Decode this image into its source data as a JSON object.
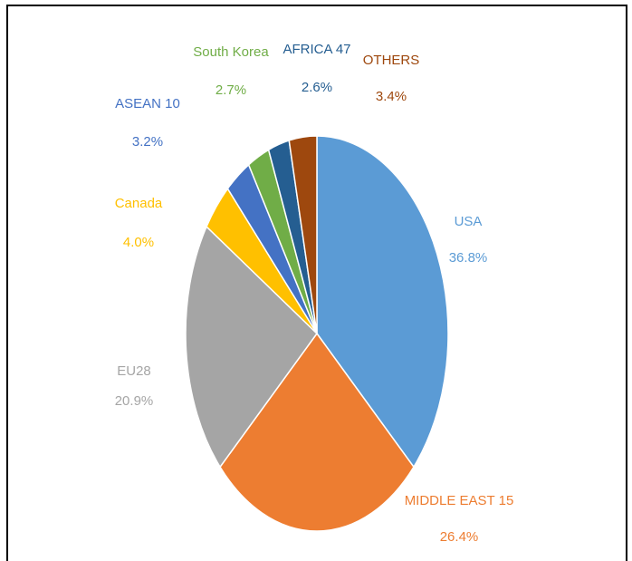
{
  "chart_data": {
    "type": "pie",
    "categories": [
      "USA",
      "MIDDLE EAST 15",
      "EU28",
      "Canada",
      "ASEAN 10",
      "South Korea",
      "AFRICA 47",
      "OTHERS"
    ],
    "values": [
      36.8,
      26.4,
      20.9,
      4.0,
      3.2,
      2.7,
      2.6,
      3.4
    ],
    "value_labels": [
      "36.8%",
      "26.4%",
      "20.9%",
      "4.0%",
      "3.2%",
      "2.7%",
      "2.6%",
      "3.4%"
    ],
    "colors": [
      "#5b9bd5",
      "#ed7d31",
      "#a5a5a5",
      "#ffc000",
      "#4472c4",
      "#70ad47",
      "#255e91",
      "#9e480e"
    ]
  }
}
